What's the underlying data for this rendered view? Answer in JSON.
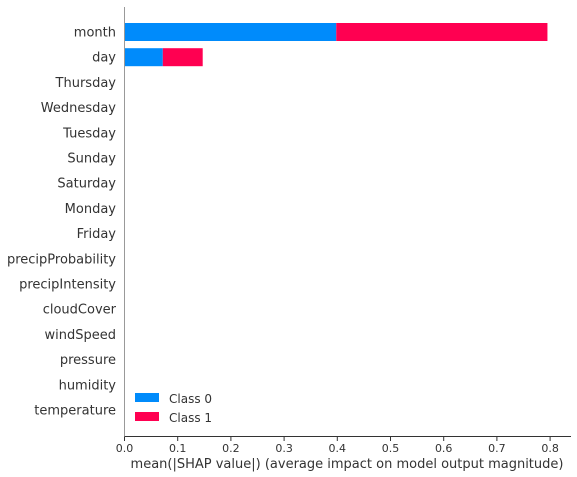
{
  "chart_data": {
    "type": "bar",
    "stacked": true,
    "orientation": "horizontal",
    "categories": [
      "month",
      "day",
      "Thursday",
      "Wednesday",
      "Tuesday",
      "Sunday",
      "Saturday",
      "Monday",
      "Friday",
      "precipProbability",
      "precipIntensity",
      "cloudCover",
      "windSpeed",
      "pressure",
      "humidity",
      "temperature"
    ],
    "series": [
      {
        "name": "Class 0",
        "color": "#008bfb",
        "values": [
          0.398,
          0.072,
          0,
          0,
          0,
          0,
          0,
          0,
          0,
          0,
          0,
          0,
          0,
          0,
          0,
          0
        ]
      },
      {
        "name": "Class 1",
        "color": "#ff0051",
        "values": [
          0.397,
          0.075,
          0,
          0,
          0,
          0,
          0,
          0,
          0,
          0,
          0,
          0,
          0,
          0,
          0,
          0
        ]
      }
    ],
    "xlabel": "mean(|SHAP value|) (average impact on model output magnitude)",
    "xlim": [
      0,
      0.835
    ],
    "xticks": [
      "0.0",
      "0.1",
      "0.2",
      "0.3",
      "0.4",
      "0.5",
      "0.6",
      "0.7",
      "0.8"
    ],
    "legend_position": "lower-left",
    "grid": false
  }
}
